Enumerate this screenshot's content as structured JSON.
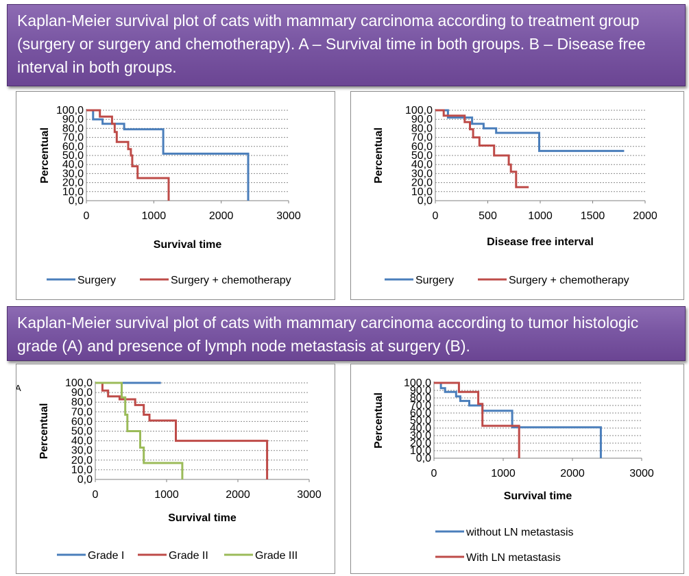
{
  "banners": {
    "top": "Kaplan-Meier survival plot of cats with mammary carcinoma according to treatment group (surgery or surgery and chemotherapy).  A – Survival time in both groups. B – Disease free interval in both groups.",
    "bottom": "Kaplan-Meier survival plot of cats with mammary carcinoma according to tumor histologic grade (A) and presence of lymph node metastasis at surgery (B)."
  },
  "colors": {
    "blue": "#4a7ebb",
    "red": "#be4b48",
    "green": "#9bbb59",
    "banner": "#7a57a3"
  },
  "chart_data": [
    {
      "type": "line",
      "panel_label": "",
      "title": "",
      "xlabel": "Survival time",
      "ylabel": "Percentual",
      "xlim": [
        0,
        3000
      ],
      "ylim": [
        0,
        100
      ],
      "xticks": [
        "0",
        "1000",
        "2000",
        "3000"
      ],
      "yticks": [
        "0,0",
        "10,0",
        "20,0",
        "30,0",
        "40,0",
        "50,0",
        "60,0",
        "70,0",
        "80,0",
        "90,0",
        "100,0"
      ],
      "grid": "horizontal",
      "legend": "bottom",
      "step": true,
      "series": [
        {
          "name": "Surgery",
          "color": "#4a7ebb",
          "points": [
            [
              0,
              100
            ],
            [
              100,
              100
            ],
            [
              100,
              90
            ],
            [
              240,
              90
            ],
            [
              240,
              85
            ],
            [
              560,
              85
            ],
            [
              560,
              79
            ],
            [
              1140,
              79
            ],
            [
              1140,
              52
            ],
            [
              2400,
              52
            ],
            [
              2400,
              0
            ]
          ]
        },
        {
          "name": "Surgery + chemotherapy",
          "color": "#be4b48",
          "points": [
            [
              0,
              100
            ],
            [
              200,
              100
            ],
            [
              200,
              93
            ],
            [
              380,
              93
            ],
            [
              380,
              85
            ],
            [
              420,
              85
            ],
            [
              420,
              76
            ],
            [
              450,
              76
            ],
            [
              450,
              65
            ],
            [
              620,
              65
            ],
            [
              620,
              57
            ],
            [
              660,
              57
            ],
            [
              660,
              50
            ],
            [
              680,
              50
            ],
            [
              680,
              38
            ],
            [
              760,
              38
            ],
            [
              760,
              25
            ],
            [
              1220,
              25
            ],
            [
              1220,
              0
            ]
          ]
        }
      ]
    },
    {
      "type": "line",
      "panel_label": "",
      "title": "",
      "xlabel": "Disease free interval",
      "ylabel": "Percentual",
      "xlim": [
        0,
        2000
      ],
      "ylim": [
        0,
        100
      ],
      "xticks": [
        "0",
        "500",
        "1000",
        "1500",
        "2000"
      ],
      "yticks": [
        "0,0",
        "10,0",
        "20,0",
        "30,0",
        "40,0",
        "50,0",
        "60,0",
        "70,0",
        "80,0",
        "90,0",
        "100,0"
      ],
      "grid": "horizontal",
      "legend": "bottom",
      "step": true,
      "series": [
        {
          "name": "Surgery",
          "color": "#4a7ebb",
          "points": [
            [
              0,
              100
            ],
            [
              120,
              100
            ],
            [
              120,
              92
            ],
            [
              350,
              92
            ],
            [
              350,
              85
            ],
            [
              460,
              85
            ],
            [
              460,
              80
            ],
            [
              580,
              80
            ],
            [
              580,
              75
            ],
            [
              990,
              75
            ],
            [
              990,
              55
            ],
            [
              1800,
              55
            ]
          ]
        },
        {
          "name": "Surgery + chemotherapy",
          "color": "#be4b48",
          "points": [
            [
              0,
              100
            ],
            [
              80,
              100
            ],
            [
              80,
              94
            ],
            [
              280,
              94
            ],
            [
              280,
              87
            ],
            [
              330,
              87
            ],
            [
              330,
              79
            ],
            [
              360,
              79
            ],
            [
              360,
              70
            ],
            [
              420,
              70
            ],
            [
              420,
              61
            ],
            [
              560,
              61
            ],
            [
              560,
              50
            ],
            [
              700,
              50
            ],
            [
              700,
              40
            ],
            [
              720,
              40
            ],
            [
              720,
              32
            ],
            [
              770,
              32
            ],
            [
              770,
              15
            ],
            [
              890,
              15
            ]
          ]
        }
      ]
    },
    {
      "type": "line",
      "panel_label": "A",
      "title": "",
      "xlabel": "Survival time",
      "ylabel": "Percentual",
      "xlim": [
        0,
        3000
      ],
      "ylim": [
        0,
        100
      ],
      "xticks": [
        "0",
        "1000",
        "2000",
        "3000"
      ],
      "yticks": [
        "0,0",
        "10,0",
        "20,0",
        "30,0",
        "40,0",
        "50,0",
        "60,0",
        "70,0",
        "80,0",
        "90,0",
        "100,0"
      ],
      "grid": "horizontal",
      "legend": "bottom",
      "step": true,
      "series": [
        {
          "name": "Grade I",
          "color": "#4a7ebb",
          "points": [
            [
              0,
              100
            ],
            [
              920,
              100
            ]
          ]
        },
        {
          "name": "Grade II",
          "color": "#be4b48",
          "points": [
            [
              0,
              100
            ],
            [
              100,
              100
            ],
            [
              100,
              92
            ],
            [
              180,
              92
            ],
            [
              180,
              86
            ],
            [
              340,
              86
            ],
            [
              340,
              83
            ],
            [
              560,
              83
            ],
            [
              560,
              77
            ],
            [
              680,
              77
            ],
            [
              680,
              67
            ],
            [
              760,
              67
            ],
            [
              760,
              61
            ],
            [
              1130,
              61
            ],
            [
              1130,
              40
            ],
            [
              2410,
              40
            ],
            [
              2410,
              0
            ]
          ]
        },
        {
          "name": "Grade III",
          "color": "#9bbb59",
          "points": [
            [
              0,
              100
            ],
            [
              370,
              100
            ],
            [
              370,
              85
            ],
            [
              420,
              85
            ],
            [
              420,
              67
            ],
            [
              450,
              67
            ],
            [
              450,
              50
            ],
            [
              630,
              50
            ],
            [
              630,
              33
            ],
            [
              680,
              33
            ],
            [
              680,
              17
            ],
            [
              1220,
              17
            ],
            [
              1220,
              0
            ]
          ]
        }
      ]
    },
    {
      "type": "line",
      "panel_label": "",
      "title": "",
      "xlabel": "Survival time",
      "ylabel": "Percentual",
      "xlim": [
        0,
        3000
      ],
      "ylim": [
        0,
        100
      ],
      "xticks": [
        "0",
        "1000",
        "2000",
        "3000"
      ],
      "yticks": [
        "0,0",
        "10,0",
        "20,0",
        "30,0",
        "40,0",
        "50,0",
        "60,0",
        "70,0",
        "80,0",
        "90,0",
        "100,0"
      ],
      "grid": "horizontal",
      "legend": "bottom",
      "step": true,
      "series": [
        {
          "name": "without LN metastasis",
          "color": "#4a7ebb",
          "points": [
            [
              0,
              100
            ],
            [
              100,
              100
            ],
            [
              100,
              93
            ],
            [
              160,
              93
            ],
            [
              160,
              88
            ],
            [
              320,
              88
            ],
            [
              320,
              82
            ],
            [
              380,
              82
            ],
            [
              380,
              76
            ],
            [
              510,
              76
            ],
            [
              510,
              70
            ],
            [
              700,
              70
            ],
            [
              700,
              63
            ],
            [
              1130,
              63
            ],
            [
              1130,
              41
            ],
            [
              2410,
              41
            ],
            [
              2410,
              0
            ]
          ]
        },
        {
          "name": "With LN metastasis",
          "color": "#be4b48",
          "points": [
            [
              0,
              100
            ],
            [
              360,
              100
            ],
            [
              360,
              88
            ],
            [
              640,
              88
            ],
            [
              640,
              72
            ],
            [
              700,
              72
            ],
            [
              700,
              43
            ],
            [
              1230,
              43
            ],
            [
              1230,
              0
            ]
          ]
        }
      ]
    }
  ]
}
